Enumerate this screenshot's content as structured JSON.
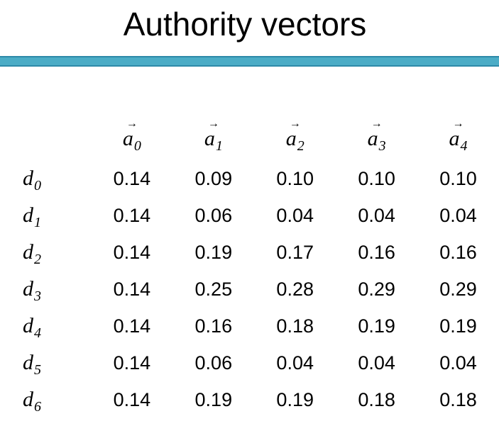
{
  "title": "Authority vectors",
  "accent_color": "#4bacc6",
  "table": {
    "columns": [
      {
        "base": "a",
        "sub": "0",
        "arrow": "→"
      },
      {
        "base": "a",
        "sub": "1",
        "arrow": "→"
      },
      {
        "base": "a",
        "sub": "2",
        "arrow": "→"
      },
      {
        "base": "a",
        "sub": "3",
        "arrow": "→"
      },
      {
        "base": "a",
        "sub": "4",
        "arrow": "→"
      }
    ],
    "rows": [
      {
        "base": "d",
        "sub": "0",
        "values": [
          "0.14",
          "0.09",
          "0.10",
          "0.10",
          "0.10"
        ]
      },
      {
        "base": "d",
        "sub": "1",
        "values": [
          "0.14",
          "0.06",
          "0.04",
          "0.04",
          "0.04"
        ]
      },
      {
        "base": "d",
        "sub": "2",
        "values": [
          "0.14",
          "0.19",
          "0.17",
          "0.16",
          "0.16"
        ]
      },
      {
        "base": "d",
        "sub": "3",
        "values": [
          "0.14",
          "0.25",
          "0.28",
          "0.29",
          "0.29"
        ]
      },
      {
        "base": "d",
        "sub": "4",
        "values": [
          "0.14",
          "0.16",
          "0.18",
          "0.19",
          "0.19"
        ]
      },
      {
        "base": "d",
        "sub": "5",
        "values": [
          "0.14",
          "0.06",
          "0.04",
          "0.04",
          "0.04"
        ]
      },
      {
        "base": "d",
        "sub": "6",
        "values": [
          "0.14",
          "0.19",
          "0.19",
          "0.18",
          "0.18"
        ]
      }
    ]
  }
}
